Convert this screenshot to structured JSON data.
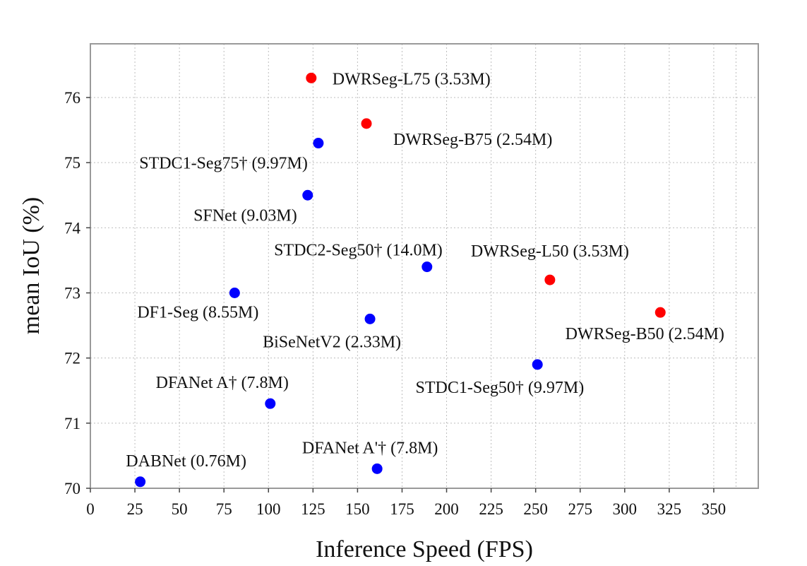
{
  "chart_data": {
    "type": "scatter",
    "title": "",
    "xlabel": "Inference Speed (FPS)",
    "ylabel": "mean IoU (%)",
    "xlim": [
      0,
      375
    ],
    "ylim": [
      70,
      76.8
    ],
    "xticks": [
      0,
      25,
      50,
      75,
      100,
      125,
      150,
      175,
      200,
      225,
      250,
      275,
      300,
      325,
      350
    ],
    "yticks": [
      70,
      71,
      72,
      73,
      74,
      75,
      76
    ],
    "grid": true,
    "series_colors": {
      "DWRSeg": "#ff0000",
      "others": "#0000ff"
    },
    "points": [
      {
        "label": "DWRSeg-L75 (3.53M)",
        "x": 124,
        "y": 76.3,
        "color": "#ff0000",
        "label_pos": "right"
      },
      {
        "label": "DWRSeg-B75 (2.54M)",
        "x": 155,
        "y": 75.6,
        "color": "#ff0000",
        "label_pos": "below-right"
      },
      {
        "label": "STDC1-Seg75† (9.97M)",
        "x": 128,
        "y": 75.3,
        "color": "#0000ff",
        "label_pos": "below-left"
      },
      {
        "label": "SFNet (9.03M)",
        "x": 122,
        "y": 74.5,
        "color": "#0000ff",
        "label_pos": "below-left"
      },
      {
        "label": "STDC2-Seg50† (14.0M)",
        "x": 189,
        "y": 73.4,
        "color": "#0000ff",
        "label_pos": "above-left"
      },
      {
        "label": "DWRSeg-L50 (3.53M)",
        "x": 258,
        "y": 73.2,
        "color": "#ff0000",
        "label_pos": "above"
      },
      {
        "label": "DF1-Seg (8.55M)",
        "x": 81,
        "y": 73.0,
        "color": "#0000ff",
        "label_pos": "below"
      },
      {
        "label": "DWRSeg-B50 (2.54M)",
        "x": 320,
        "y": 72.7,
        "color": "#ff0000",
        "label_pos": "below"
      },
      {
        "label": "BiSeNetV2 (2.33M)",
        "x": 157,
        "y": 72.6,
        "color": "#0000ff",
        "label_pos": "below"
      },
      {
        "label": "STDC1-Seg50† (9.97M)",
        "x": 251,
        "y": 71.9,
        "color": "#0000ff",
        "label_pos": "below-left"
      },
      {
        "label": "DFANet A† (7.8M)",
        "x": 101,
        "y": 71.3,
        "color": "#0000ff",
        "label_pos": "above"
      },
      {
        "label": "DFANet A'† (7.8M)",
        "x": 161,
        "y": 70.3,
        "color": "#0000ff",
        "label_pos": "above"
      },
      {
        "label": "DABNet (0.76M)",
        "x": 28,
        "y": 70.1,
        "color": "#0000ff",
        "label_pos": "above"
      }
    ]
  }
}
